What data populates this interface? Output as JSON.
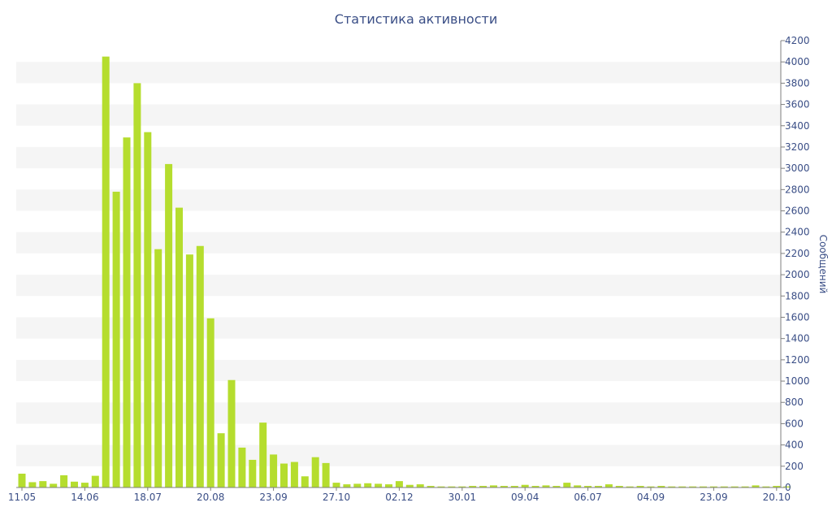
{
  "chart_data": {
    "type": "bar",
    "title": "Статистика активности",
    "ylabel": "Сообщений",
    "xlabel": "",
    "ylim": [
      0,
      4200
    ],
    "y_ticks": [
      0,
      200,
      400,
      600,
      800,
      1000,
      1200,
      1400,
      1600,
      1800,
      2000,
      2200,
      2400,
      2600,
      2800,
      3000,
      3200,
      3400,
      3600,
      3800,
      4000,
      4200
    ],
    "x_tick_labels": [
      {
        "label": "11.05",
        "bar_index": 0
      },
      {
        "label": "14.06",
        "bar_index": 6
      },
      {
        "label": "18.07",
        "bar_index": 12
      },
      {
        "label": "20.08",
        "bar_index": 18
      },
      {
        "label": "23.09",
        "bar_index": 24
      },
      {
        "label": "27.10",
        "bar_index": 30
      },
      {
        "label": "02.12",
        "bar_index": 36
      },
      {
        "label": "30.01",
        "bar_index": 42
      },
      {
        "label": "09.04",
        "bar_index": 48
      },
      {
        "label": "06.07",
        "bar_index": 54
      },
      {
        "label": "04.09",
        "bar_index": 60
      },
      {
        "label": "23.09",
        "bar_index": 66
      },
      {
        "label": "20.10",
        "bar_index": 72
      }
    ],
    "values": [
      130,
      50,
      60,
      35,
      115,
      55,
      45,
      110,
      4050,
      2780,
      3290,
      3800,
      3340,
      2240,
      3040,
      2630,
      2190,
      2270,
      1590,
      510,
      1010,
      375,
      260,
      610,
      310,
      225,
      240,
      105,
      285,
      230,
      45,
      30,
      35,
      40,
      35,
      30,
      60,
      25,
      30,
      15,
      10,
      10,
      10,
      15,
      15,
      20,
      15,
      15,
      25,
      15,
      20,
      15,
      45,
      20,
      15,
      15,
      30,
      15,
      10,
      15,
      10,
      15,
      10,
      10,
      10,
      10,
      10,
      10,
      10,
      10,
      20,
      10,
      15,
      10
    ],
    "grid": true,
    "legend": "none",
    "colors": {
      "bar": "#b5dd2e",
      "text": "#3a4e86",
      "band": "#f5f5f5",
      "axis": "#7f7f7f"
    }
  }
}
